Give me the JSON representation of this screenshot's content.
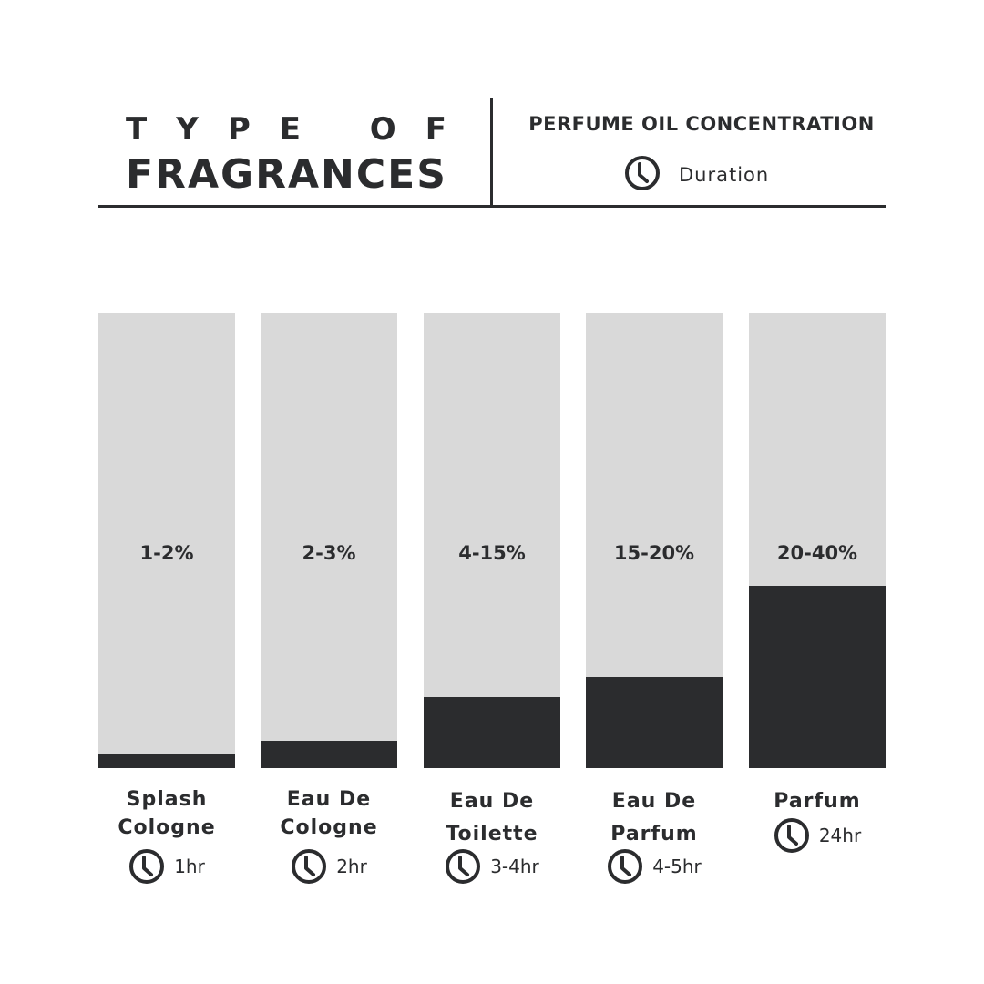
{
  "header": {
    "title_line1": "TYPE OF",
    "title_line2": "FRAGRANCES",
    "subtitle": "PERFUME OIL CONCENTRATION",
    "legend_icon": "clock-icon",
    "legend_label": "Duration"
  },
  "colors": {
    "fill": "#2b2c2e",
    "track": "#d9d9d9",
    "text": "#2b2c2e"
  },
  "chart_data": {
    "type": "bar",
    "title": "TYPE OF FRAGRANCES",
    "subtitle": "PERFUME OIL CONCENTRATION",
    "ylim": [
      0,
      100
    ],
    "categories": [
      {
        "lines": [
          "Splash",
          "Cologne"
        ],
        "concentration": "1-2%",
        "duration": "1hr",
        "fill_percent": 3
      },
      {
        "lines": [
          "Eau De",
          "Cologne"
        ],
        "concentration": "2-3%",
        "duration": "2hr",
        "fill_percent": 6
      },
      {
        "lines": [
          "Eau De",
          "Toilette"
        ],
        "concentration": "4-15%",
        "duration": "3-4hr",
        "fill_percent": 15.6
      },
      {
        "lines": [
          "Eau De",
          "Parfum"
        ],
        "concentration": "15-20%",
        "duration": "4-5hr",
        "fill_percent": 20
      },
      {
        "lines": [
          "Parfum"
        ],
        "concentration": "20-40%",
        "duration": "24hr",
        "fill_percent": 40
      }
    ]
  }
}
